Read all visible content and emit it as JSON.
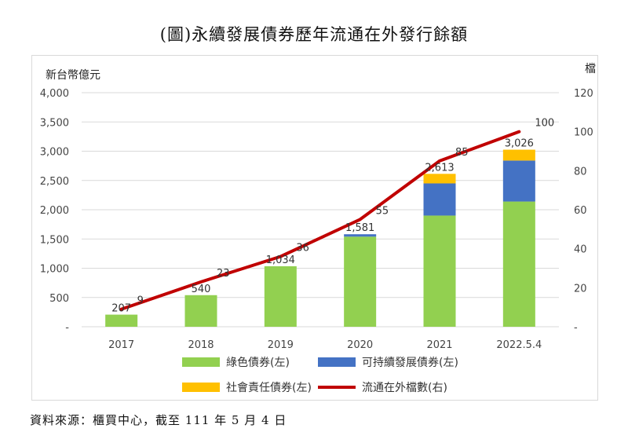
{
  "page": {
    "title": "(圖)永續發展債券歷年流通在外發行餘額",
    "source": "資料來源：櫃買中心，截至 111 年 5 月 4 日"
  },
  "chart_data": {
    "type": "bar",
    "stacked": true,
    "title": "",
    "categories": [
      "2017",
      "2018",
      "2019",
      "2020",
      "2021",
      "2022.5.4"
    ],
    "ylabel_left": "新台幣億元",
    "ylabel_right": "檔",
    "y_left_ticks": [
      "-",
      "500",
      "1,000",
      "1,500",
      "2,000",
      "2,500",
      "3,000",
      "3,500",
      "4,000"
    ],
    "y_right_ticks": [
      "-",
      "20",
      "40",
      "60",
      "80",
      "100",
      "120"
    ],
    "ylim_left": [
      0,
      4000
    ],
    "ylim_right": [
      0,
      120
    ],
    "grid": true,
    "legend_position": "bottom",
    "series": [
      {
        "name": "綠色債券(左)",
        "axis": "left",
        "color": "#92d050",
        "values": [
          207,
          540,
          1034,
          1540,
          1900,
          2140
        ]
      },
      {
        "name": "可持續發展債券(左)",
        "axis": "left",
        "color": "#4472c4",
        "values": [
          0,
          0,
          0,
          41,
          550,
          700
        ]
      },
      {
        "name": "社會責任債券(左)",
        "axis": "left",
        "color": "#ffc000",
        "values": [
          0,
          0,
          0,
          0,
          163,
          186
        ]
      },
      {
        "name": "流通在外檔數(右)",
        "axis": "right",
        "type": "line",
        "color": "#c00000",
        "values": [
          9,
          23,
          36,
          55,
          85,
          100
        ]
      }
    ],
    "total_labels": [
      "207",
      "540",
      "1,034",
      "1,581",
      "2,613",
      "3,026"
    ],
    "line_labels": [
      "9",
      "23",
      "36",
      "55",
      "85",
      "100"
    ]
  }
}
